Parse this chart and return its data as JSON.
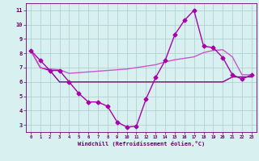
{
  "x": [
    0,
    1,
    2,
    3,
    4,
    5,
    6,
    7,
    8,
    9,
    10,
    11,
    12,
    13,
    14,
    15,
    16,
    17,
    18,
    19,
    20,
    21,
    22,
    23
  ],
  "line1": [
    8.2,
    7.5,
    6.8,
    6.8,
    6.0,
    5.2,
    4.6,
    4.6,
    4.3,
    3.2,
    2.85,
    2.9,
    4.8,
    6.3,
    7.5,
    9.3,
    10.3,
    11.0,
    8.5,
    8.4,
    7.7,
    6.5,
    6.2,
    6.5
  ],
  "line2": [
    8.2,
    7.0,
    6.9,
    6.85,
    6.6,
    6.65,
    6.7,
    6.75,
    6.8,
    6.85,
    6.9,
    7.0,
    7.1,
    7.2,
    7.4,
    7.55,
    7.65,
    7.75,
    8.05,
    8.2,
    8.25,
    7.75,
    6.5,
    6.5
  ],
  "line3": [
    8.2,
    7.0,
    6.8,
    6.0,
    6.0,
    6.0,
    6.0,
    6.0,
    6.0,
    6.0,
    6.0,
    6.0,
    6.0,
    6.0,
    6.0,
    6.0,
    6.0,
    6.0,
    6.0,
    6.0,
    6.0,
    6.35,
    6.35,
    6.35
  ],
  "color1": "#aa00aa",
  "color2": "#cc55cc",
  "color3": "#880088",
  "bg_color": "#d8f0f0",
  "grid_color": "#aacccc",
  "xlabel": "Windchill (Refroidissement éolien,°C)",
  "ylim": [
    2.5,
    11.5
  ],
  "xlim": [
    -0.5,
    23.5
  ],
  "yticks": [
    3,
    4,
    5,
    6,
    7,
    8,
    9,
    10,
    11
  ],
  "xticks": [
    0,
    1,
    2,
    3,
    4,
    5,
    6,
    7,
    8,
    9,
    10,
    11,
    12,
    13,
    14,
    15,
    16,
    17,
    18,
    19,
    20,
    21,
    22,
    23
  ],
  "label_color": "#660066",
  "marker": "D",
  "markersize": 2.5,
  "linewidth": 1.0
}
